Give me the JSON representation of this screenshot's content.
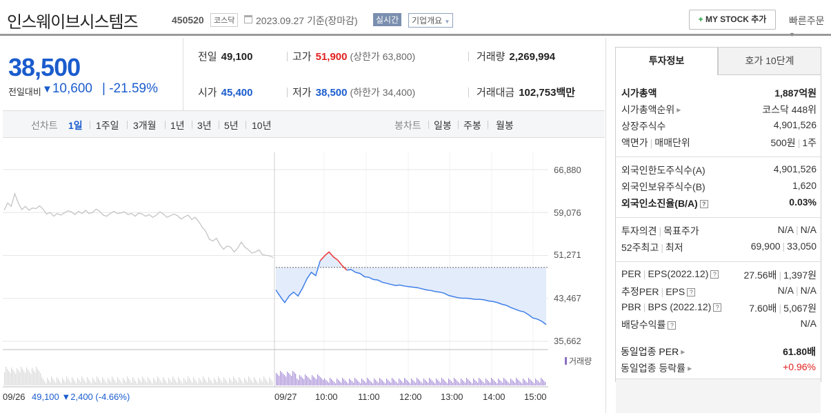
{
  "header": {
    "name": "인스웨이브시스템즈",
    "code": "450520",
    "market": "코스닥",
    "date": "2023.09.27 기준(장마감)",
    "realtime": "실시간",
    "company_info": "기업개요",
    "mystock_label": "MY STOCK 추가",
    "quick_order": "빠른주문"
  },
  "summary": {
    "price": "38,500",
    "change_label": "전일대비",
    "change": "10,600",
    "change_pct": "-21.59%"
  },
  "stats": {
    "prev_label": "전일",
    "prev": "49,100",
    "high_label": "고가",
    "high": "51,900",
    "upper_limit": "(상한가 63,800)",
    "volume_label": "거래량",
    "volume": "2,269,994",
    "open_label": "시가",
    "open": "45,400",
    "low_label": "저가",
    "low": "38,500",
    "lower_limit": "(하한가 34,400)",
    "amount_label": "거래대금",
    "amount": "102,753",
    "amount_unit": "백만"
  },
  "period_bar": {
    "line_label": "선차트",
    "periods": [
      "1일",
      "1주일",
      "3개월",
      "1년",
      "3년",
      "5년",
      "10년"
    ],
    "selected": "1일",
    "candle_label": "봉차트",
    "candles": [
      "일봉",
      "주봉",
      "월봉"
    ]
  },
  "chart_data": {
    "type": "line",
    "y_ticks": [
      "66,880",
      "59,076",
      "51,271",
      "43,467",
      "35,662"
    ],
    "ylim": [
      35662,
      66880
    ],
    "x_ticks": [
      "09/26",
      "09/27",
      "10:00",
      "11:00",
      "12:00",
      "13:00",
      "14:00",
      "15:00"
    ],
    "reference_price": 49100,
    "legend": "거래량",
    "prev_day": {
      "date": "09/26",
      "close": "49,100",
      "change": "▼2,400",
      "pct": "(-4.66%)"
    },
    "series": [
      {
        "values": [
          59500,
          60800,
          60200,
          62500,
          60800,
          59600,
          60200,
          59500,
          59900,
          59800,
          60300,
          59700,
          58800,
          59100,
          58400,
          58900,
          58600,
          59000,
          59400,
          59200,
          58700,
          59300,
          58900,
          59500,
          58900,
          59100,
          59700,
          59300,
          58600,
          58400,
          58900,
          59300,
          58900,
          59000,
          59200,
          58700,
          58900,
          58400,
          59000,
          58800,
          58400,
          58700,
          58200,
          58600,
          59200,
          58800,
          58200,
          58500,
          58800,
          58500,
          57900,
          58300,
          58600,
          57800,
          58200,
          57400,
          56400,
          55600,
          54200,
          53900,
          54400,
          53200,
          52400,
          53000,
          52800,
          51900,
          52600,
          53700,
          52800,
          52300,
          51700,
          51900,
          52300,
          51400,
          51300,
          51200,
          50900
        ]
      },
      {
        "values": [
          45000,
          43800,
          42700,
          43900,
          44600,
          43900,
          45300,
          47000,
          48200,
          47600,
          50300,
          51200,
          51900,
          51000,
          50400,
          49400,
          48600,
          48700,
          48200,
          48000,
          47400,
          47300,
          46900,
          46800,
          46400,
          46200,
          46000,
          45800,
          45900,
          45700,
          45600,
          45500,
          45400,
          45200,
          45000,
          44900,
          44700,
          44600,
          44400,
          44000,
          43800,
          43600,
          43500,
          43500,
          43400,
          43300,
          43300,
          43200,
          43000,
          42900,
          42700,
          42400,
          42200,
          41800,
          41500,
          41200,
          41000,
          40500,
          39900,
          39700,
          39300,
          38700
        ]
      }
    ]
  },
  "right_panel": {
    "tab_active": "투자정보",
    "tab_other": "호가 10단계",
    "rows": [
      {
        "k": "시가총액",
        "v": "1,887억원"
      },
      {
        "k": "시가총액순위",
        "v": "코스닥 448위"
      },
      {
        "k": "상장주식수",
        "v": "4,901,526"
      },
      {
        "k": "액면가",
        "k2": "매매단위",
        "v": "500원",
        "v2": "1주"
      },
      {
        "k": "외국인한도주식수(A)",
        "v": "4,901,526"
      },
      {
        "k": "외국인보유주식수(B)",
        "v": "1,620"
      },
      {
        "k": "외국인소진율(B/A)",
        "v": "0.03%"
      },
      {
        "k": "투자의견",
        "k2": "목표주가",
        "v": "N/A",
        "v2": "N/A"
      },
      {
        "k": "52주최고",
        "k2": "최저",
        "v": "69,900",
        "v2": "33,050"
      },
      {
        "k": "PER",
        "k2": "EPS(2022.12)",
        "v": "27.56배",
        "v2": "1,397원"
      },
      {
        "k": "추정PER",
        "k2": "EPS",
        "v": "N/A",
        "v2": "N/A"
      },
      {
        "k": "PBR",
        "k2": "BPS (2022.12)",
        "v": "7.60배",
        "v2": "5,067원"
      },
      {
        "k": "배당수익률",
        "v": "N/A"
      },
      {
        "k": "동일업종 PER",
        "v": "61.80배"
      },
      {
        "k": "동일업종 등락률",
        "v": "+0.96%"
      }
    ]
  }
}
